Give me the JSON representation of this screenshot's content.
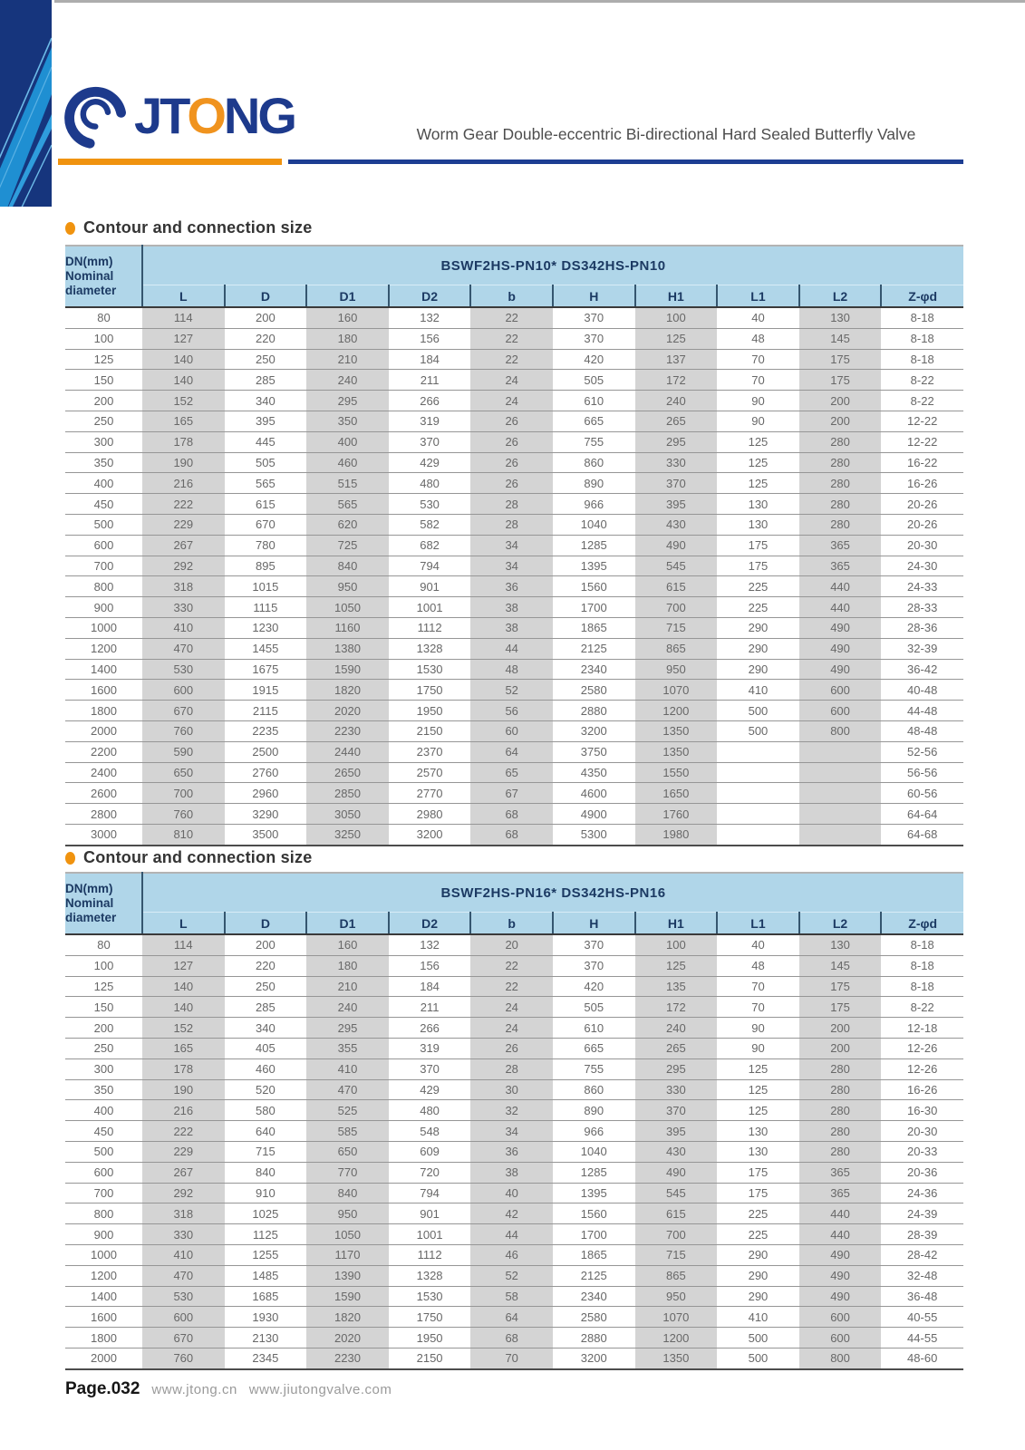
{
  "header": {
    "logo": {
      "text_jt": "JT",
      "text_o": "O",
      "text_ng": "NG"
    },
    "doc_title": "Worm Gear Double-eccentric Bi-directional Hard Sealed Butterfly Valve"
  },
  "colors": {
    "brand_navy": "#1c3d92",
    "brand_orange": "#f0930f",
    "table_header_blue": "#b0d6e9",
    "column_shade_gray": "#d4d4d4"
  },
  "tables": [
    {
      "section_title": "Contour and connection size",
      "corner": [
        "DN(mm)",
        "Nominal",
        "diameter"
      ],
      "model_header": "BSWF2HS-PN10*  DS342HS-PN10",
      "columns": [
        "L",
        "D",
        "D1",
        "D2",
        "b",
        "H",
        "H1",
        "L1",
        "L2",
        "Z-φd"
      ],
      "rows": [
        [
          "80",
          "114",
          "200",
          "160",
          "132",
          "22",
          "370",
          "100",
          "40",
          "130",
          "8-18"
        ],
        [
          "100",
          "127",
          "220",
          "180",
          "156",
          "22",
          "370",
          "125",
          "48",
          "145",
          "8-18"
        ],
        [
          "125",
          "140",
          "250",
          "210",
          "184",
          "22",
          "420",
          "137",
          "70",
          "175",
          "8-18"
        ],
        [
          "150",
          "140",
          "285",
          "240",
          "211",
          "24",
          "505",
          "172",
          "70",
          "175",
          "8-22"
        ],
        [
          "200",
          "152",
          "340",
          "295",
          "266",
          "24",
          "610",
          "240",
          "90",
          "200",
          "8-22"
        ],
        [
          "250",
          "165",
          "395",
          "350",
          "319",
          "26",
          "665",
          "265",
          "90",
          "200",
          "12-22"
        ],
        [
          "300",
          "178",
          "445",
          "400",
          "370",
          "26",
          "755",
          "295",
          "125",
          "280",
          "12-22"
        ],
        [
          "350",
          "190",
          "505",
          "460",
          "429",
          "26",
          "860",
          "330",
          "125",
          "280",
          "16-22"
        ],
        [
          "400",
          "216",
          "565",
          "515",
          "480",
          "26",
          "890",
          "370",
          "125",
          "280",
          "16-26"
        ],
        [
          "450",
          "222",
          "615",
          "565",
          "530",
          "28",
          "966",
          "395",
          "130",
          "280",
          "20-26"
        ],
        [
          "500",
          "229",
          "670",
          "620",
          "582",
          "28",
          "1040",
          "430",
          "130",
          "280",
          "20-26"
        ],
        [
          "600",
          "267",
          "780",
          "725",
          "682",
          "34",
          "1285",
          "490",
          "175",
          "365",
          "20-30"
        ],
        [
          "700",
          "292",
          "895",
          "840",
          "794",
          "34",
          "1395",
          "545",
          "175",
          "365",
          "24-30"
        ],
        [
          "800",
          "318",
          "1015",
          "950",
          "901",
          "36",
          "1560",
          "615",
          "225",
          "440",
          "24-33"
        ],
        [
          "900",
          "330",
          "1115",
          "1050",
          "1001",
          "38",
          "1700",
          "700",
          "225",
          "440",
          "28-33"
        ],
        [
          "1000",
          "410",
          "1230",
          "1160",
          "1112",
          "38",
          "1865",
          "715",
          "290",
          "490",
          "28-36"
        ],
        [
          "1200",
          "470",
          "1455",
          "1380",
          "1328",
          "44",
          "2125",
          "865",
          "290",
          "490",
          "32-39"
        ],
        [
          "1400",
          "530",
          "1675",
          "1590",
          "1530",
          "48",
          "2340",
          "950",
          "290",
          "490",
          "36-42"
        ],
        [
          "1600",
          "600",
          "1915",
          "1820",
          "1750",
          "52",
          "2580",
          "1070",
          "410",
          "600",
          "40-48"
        ],
        [
          "1800",
          "670",
          "2115",
          "2020",
          "1950",
          "56",
          "2880",
          "1200",
          "500",
          "600",
          "44-48"
        ],
        [
          "2000",
          "760",
          "2235",
          "2230",
          "2150",
          "60",
          "3200",
          "1350",
          "500",
          "800",
          "48-48"
        ],
        [
          "2200",
          "590",
          "2500",
          "2440",
          "2370",
          "64",
          "3750",
          "1350",
          "",
          "",
          "52-56"
        ],
        [
          "2400",
          "650",
          "2760",
          "2650",
          "2570",
          "65",
          "4350",
          "1550",
          "",
          "",
          "56-56"
        ],
        [
          "2600",
          "700",
          "2960",
          "2850",
          "2770",
          "67",
          "4600",
          "1650",
          "",
          "",
          "60-56"
        ],
        [
          "2800",
          "760",
          "3290",
          "3050",
          "2980",
          "68",
          "4900",
          "1760",
          "",
          "",
          "64-64"
        ],
        [
          "3000",
          "810",
          "3500",
          "3250",
          "3200",
          "68",
          "5300",
          "1980",
          "",
          "",
          "64-68"
        ]
      ]
    },
    {
      "section_title": "Contour and connection size",
      "corner": [
        "DN(mm)",
        "Nominal",
        "diameter"
      ],
      "model_header": "BSWF2HS-PN16*  DS342HS-PN16",
      "columns": [
        "L",
        "D",
        "D1",
        "D2",
        "b",
        "H",
        "H1",
        "L1",
        "L2",
        "Z-φd"
      ],
      "rows": [
        [
          "80",
          "114",
          "200",
          "160",
          "132",
          "20",
          "370",
          "100",
          "40",
          "130",
          "8-18"
        ],
        [
          "100",
          "127",
          "220",
          "180",
          "156",
          "22",
          "370",
          "125",
          "48",
          "145",
          "8-18"
        ],
        [
          "125",
          "140",
          "250",
          "210",
          "184",
          "22",
          "420",
          "135",
          "70",
          "175",
          "8-18"
        ],
        [
          "150",
          "140",
          "285",
          "240",
          "211",
          "24",
          "505",
          "172",
          "70",
          "175",
          "8-22"
        ],
        [
          "200",
          "152",
          "340",
          "295",
          "266",
          "24",
          "610",
          "240",
          "90",
          "200",
          "12-18"
        ],
        [
          "250",
          "165",
          "405",
          "355",
          "319",
          "26",
          "665",
          "265",
          "90",
          "200",
          "12-26"
        ],
        [
          "300",
          "178",
          "460",
          "410",
          "370",
          "28",
          "755",
          "295",
          "125",
          "280",
          "12-26"
        ],
        [
          "350",
          "190",
          "520",
          "470",
          "429",
          "30",
          "860",
          "330",
          "125",
          "280",
          "16-26"
        ],
        [
          "400",
          "216",
          "580",
          "525",
          "480",
          "32",
          "890",
          "370",
          "125",
          "280",
          "16-30"
        ],
        [
          "450",
          "222",
          "640",
          "585",
          "548",
          "34",
          "966",
          "395",
          "130",
          "280",
          "20-30"
        ],
        [
          "500",
          "229",
          "715",
          "650",
          "609",
          "36",
          "1040",
          "430",
          "130",
          "280",
          "20-33"
        ],
        [
          "600",
          "267",
          "840",
          "770",
          "720",
          "38",
          "1285",
          "490",
          "175",
          "365",
          "20-36"
        ],
        [
          "700",
          "292",
          "910",
          "840",
          "794",
          "40",
          "1395",
          "545",
          "175",
          "365",
          "24-36"
        ],
        [
          "800",
          "318",
          "1025",
          "950",
          "901",
          "42",
          "1560",
          "615",
          "225",
          "440",
          "24-39"
        ],
        [
          "900",
          "330",
          "1125",
          "1050",
          "1001",
          "44",
          "1700",
          "700",
          "225",
          "440",
          "28-39"
        ],
        [
          "1000",
          "410",
          "1255",
          "1170",
          "1112",
          "46",
          "1865",
          "715",
          "290",
          "490",
          "28-42"
        ],
        [
          "1200",
          "470",
          "1485",
          "1390",
          "1328",
          "52",
          "2125",
          "865",
          "290",
          "490",
          "32-48"
        ],
        [
          "1400",
          "530",
          "1685",
          "1590",
          "1530",
          "58",
          "2340",
          "950",
          "290",
          "490",
          "36-48"
        ],
        [
          "1600",
          "600",
          "1930",
          "1820",
          "1750",
          "64",
          "2580",
          "1070",
          "410",
          "600",
          "40-55"
        ],
        [
          "1800",
          "670",
          "2130",
          "2020",
          "1950",
          "68",
          "2880",
          "1200",
          "500",
          "600",
          "44-55"
        ],
        [
          "2000",
          "760",
          "2345",
          "2230",
          "2150",
          "70",
          "3200",
          "1350",
          "500",
          "800",
          "48-60"
        ]
      ]
    }
  ],
  "footer": {
    "page_label": "Page.032",
    "site1": "www.jtong.cn",
    "site2": "www.jiutongvalve.com"
  }
}
